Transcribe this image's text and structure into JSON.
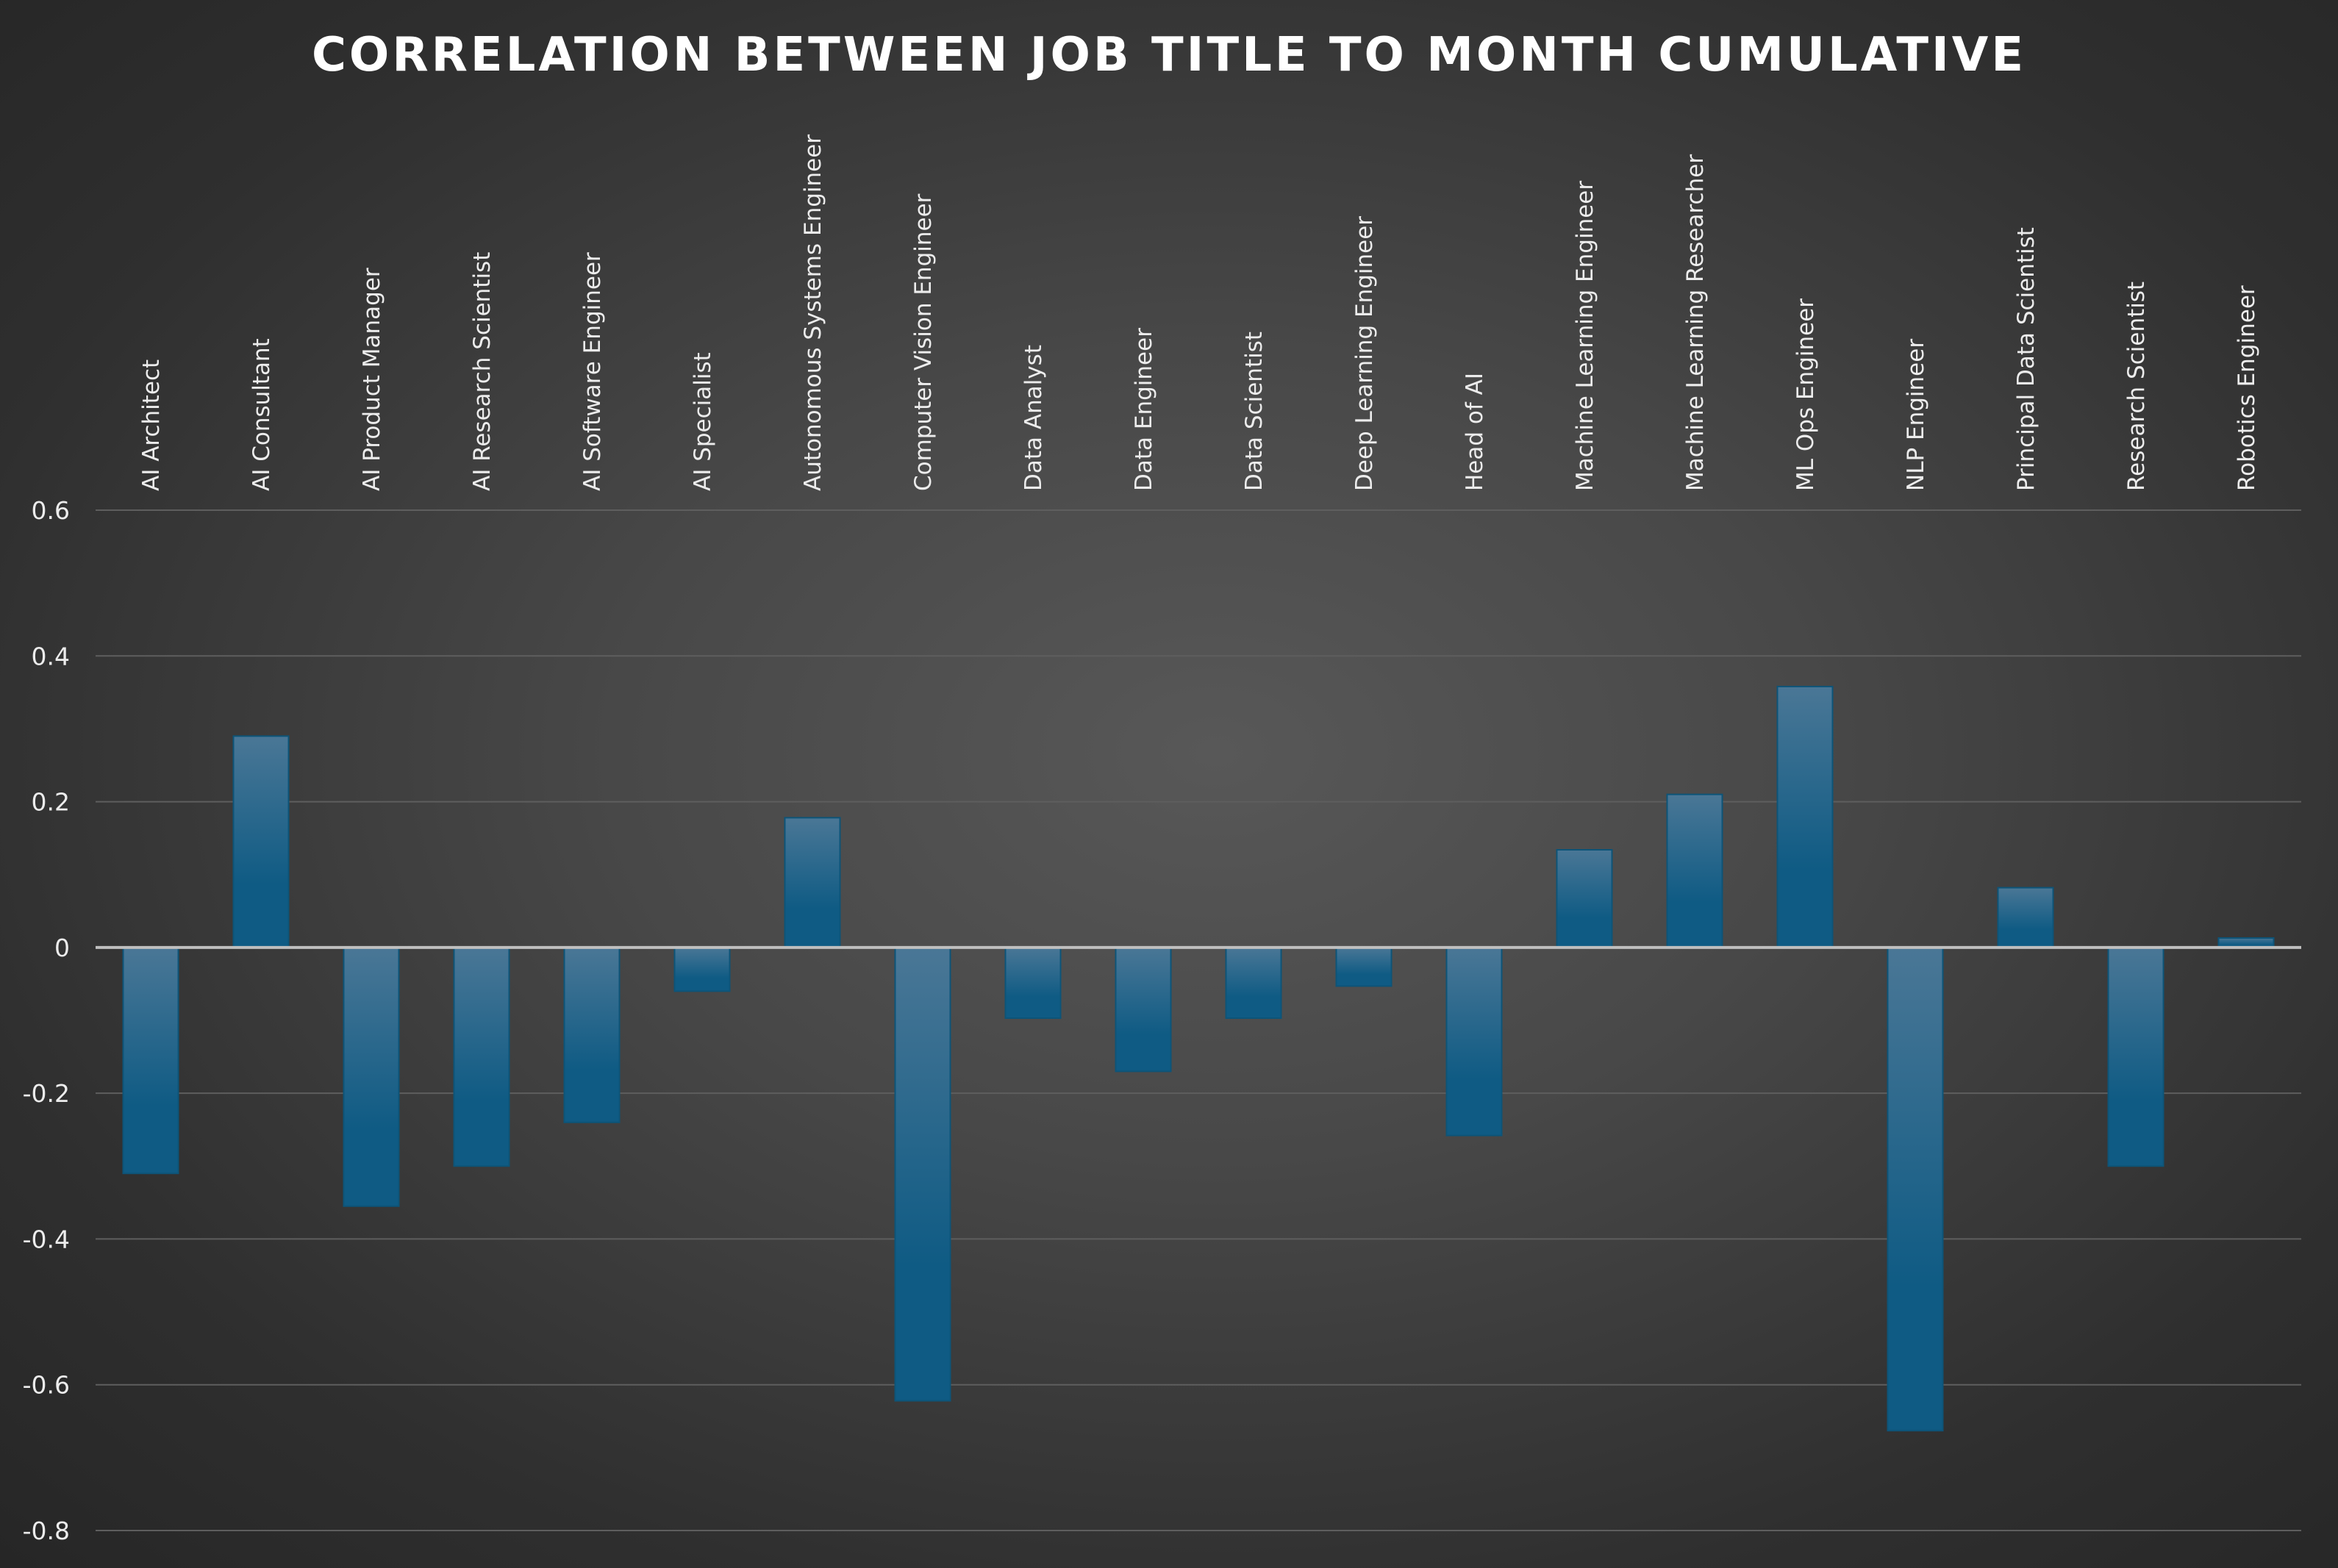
{
  "chart_data": {
    "type": "bar",
    "title": "CORRELATION BETWEEN JOB TITLE TO MONTH CUMULATIVE",
    "xlabel": "",
    "ylabel": "",
    "ylim": [
      -0.8,
      0.6
    ],
    "yticks": [
      0.6,
      0.4,
      0.2,
      0,
      -0.2,
      -0.4,
      -0.6,
      -0.8
    ],
    "ytick_labels": [
      "0.6",
      "0.4",
      "0.2",
      "0",
      "-0.2",
      "-0.4",
      "-0.6",
      "-0.8"
    ],
    "grid": true,
    "legend": "none",
    "categories": [
      "AI Architect",
      "AI Consultant",
      "AI Product Manager",
      "AI Research Scientist",
      "AI Software Engineer",
      "AI Specialist",
      "Autonomous Systems Engineer",
      "Computer Vision Engineer",
      "Data Analyst",
      "Data Engineer",
      "Data Scientist",
      "Deep Learning Engineer",
      "Head of AI",
      "Machine Learning Engineer",
      "Machine Learning Researcher",
      "ML Ops Engineer",
      "NLP Engineer",
      "Principal Data Scientist",
      "Research Scientist",
      "Robotics Engineer"
    ],
    "values": [
      -0.31,
      0.29,
      -0.355,
      -0.3,
      -0.24,
      -0.06,
      0.178,
      -0.622,
      -0.097,
      -0.17,
      -0.097,
      -0.053,
      -0.258,
      0.134,
      0.21,
      0.358,
      -0.663,
      0.082,
      -0.3,
      0.013
    ],
    "colors": {
      "bar_top": "#4a7796",
      "bar_bottom": "#0f5b84",
      "bar_edge": "#0d5478",
      "grid": "#5e5e5e",
      "zero_line": "#bfbfbf",
      "text": "#ececec"
    }
  }
}
